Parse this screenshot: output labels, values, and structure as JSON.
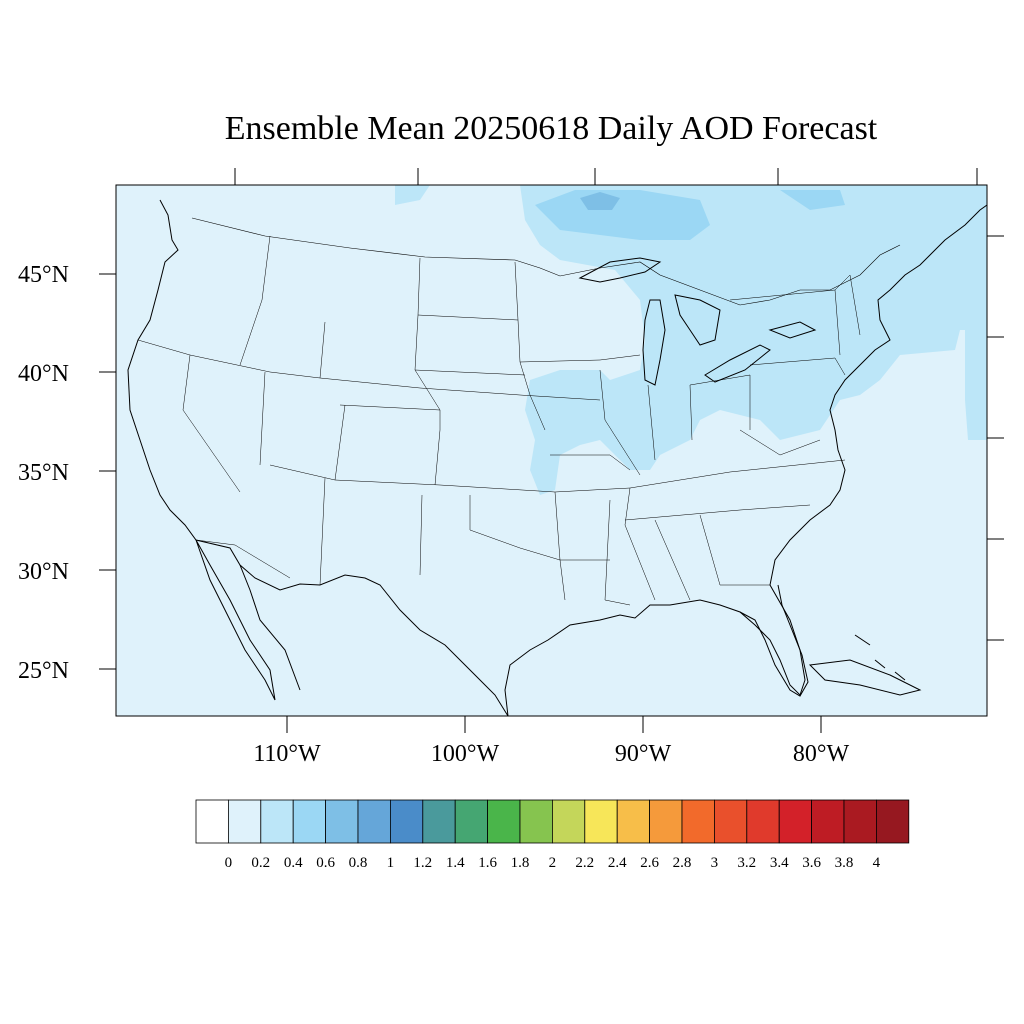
{
  "title": "Ensemble Mean 20250618 Daily AOD Forecast",
  "map": {
    "lon_range": [
      -119,
      -70
    ],
    "lat_range": [
      22.5,
      49.5
    ],
    "lat_ticks": [
      "45°N",
      "40°N",
      "35°N",
      "30°N",
      "25°N"
    ],
    "lon_ticks": [
      "110°W",
      "100°W",
      "90°W",
      "80°W"
    ],
    "background_color": "#dff2fb"
  },
  "colorbar": {
    "labels": [
      "0",
      "0.2",
      "0.4",
      "0.6",
      "0.8",
      "1",
      "1.2",
      "1.4",
      "1.6",
      "1.8",
      "2",
      "2.2",
      "2.4",
      "2.6",
      "2.8",
      "3",
      "3.2",
      "3.4",
      "3.6",
      "3.8",
      "4"
    ],
    "colors": [
      "#ffffff",
      "#dff2fb",
      "#bce6f8",
      "#9bd7f4",
      "#7ebfe6",
      "#65a6d9",
      "#4a8cc9",
      "#4a9a9c",
      "#45a672",
      "#4ab54a",
      "#86c44f",
      "#c4d65a",
      "#f7e659",
      "#f7be49",
      "#f59a3b",
      "#f26a2b",
      "#e9502c",
      "#e03a2c",
      "#d32129",
      "#be1c24",
      "#aa1a21",
      "#961820"
    ]
  }
}
